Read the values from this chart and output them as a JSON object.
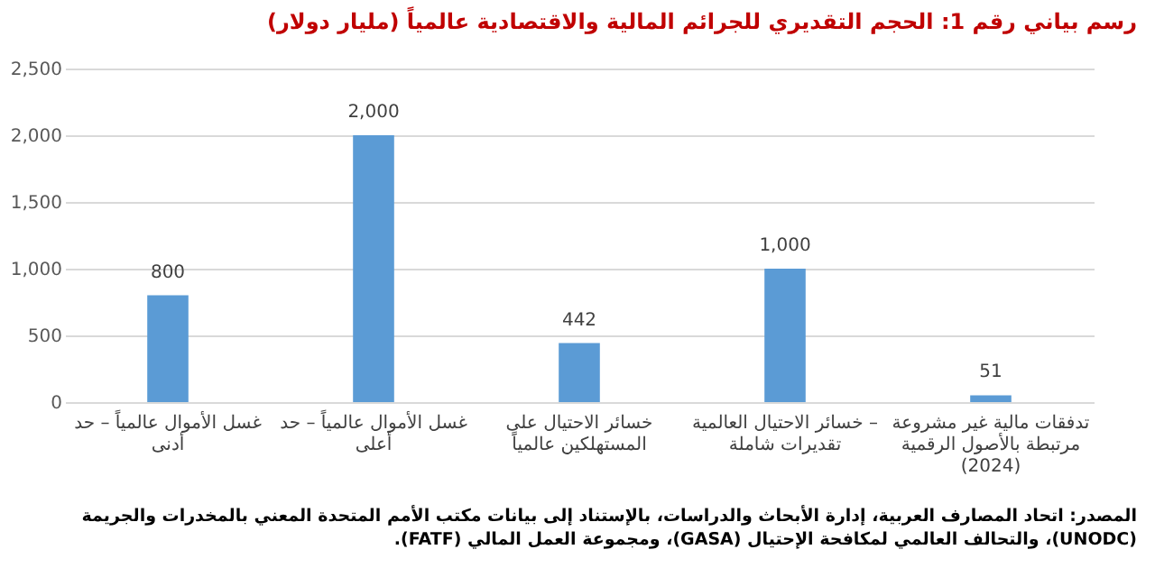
{
  "chart_data": {
    "type": "bar",
    "title": "رسم بياني رقم 1: الحجم التقديري للجرائم المالية والاقتصادية عالمياً (مليار دولار)",
    "categories": [
      "غسل الأموال عالمياً – حد أدنى",
      "غسل الأموال عالمياً – حد أعلى",
      "خسائر الاحتيال على المستهلكين عالمياً",
      "خسائر الاحتيال العالمية – تقديرات شاملة",
      "تدفقات مالية غير مشروعة مرتبطة بالأصول الرقمية (2024)"
    ],
    "values": [
      800,
      2000,
      442,
      1000,
      51
    ],
    "color": "#5b9bd5",
    "ylim": [
      0,
      2500
    ],
    "yticks": [
      {
        "value": 0,
        "label": "0"
      },
      {
        "value": 500,
        "label": "500"
      },
      {
        "value": 1000,
        "label": "1,000"
      },
      {
        "value": 1500,
        "label": "1,500"
      },
      {
        "value": 2000,
        "label": "2,000"
      },
      {
        "value": 2500,
        "label": "2,500"
      }
    ],
    "grid": "y",
    "value_labels": [
      "800",
      "2,000",
      "442",
      "1,000",
      "51"
    ],
    "annotations": [
      "المصدر: اتحاد المصارف العربية، إدارة الأبحاث والدراسات، بالإستناد إلى بيانات مكتب الأمم المتحدة المعني بالمخدرات والجريمة (UNODC)، والتحالف العالمي لمكافحة الإحتيال (GASA)، ومجموعة العمل المالي (FATF)."
    ]
  }
}
